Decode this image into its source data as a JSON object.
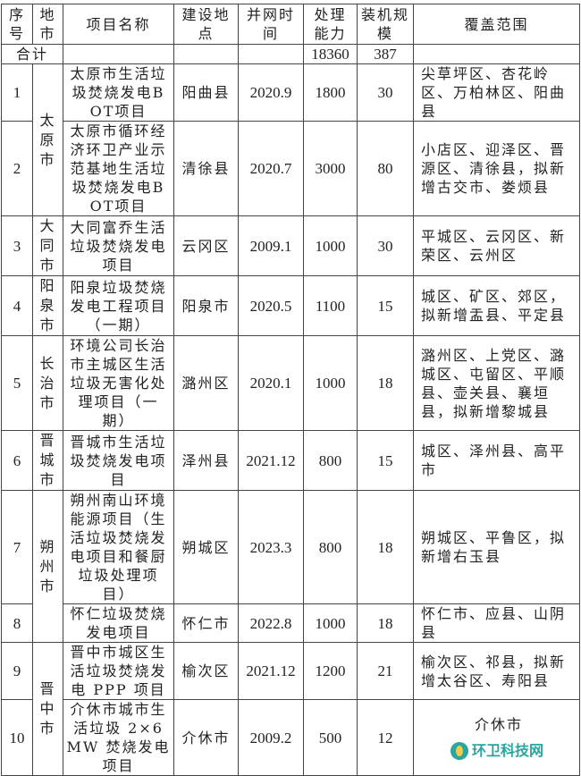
{
  "headers": [
    "序号",
    "地市",
    "项目名称",
    "建设地点",
    "并网时间",
    "处理能力",
    "装机规模",
    "覆盖范围"
  ],
  "total": {
    "label": "合计",
    "capacity": "18360",
    "installed": "387"
  },
  "cities": [
    "太原市",
    "大同市",
    "阳泉市",
    "长治市",
    "晋城市",
    "朔州市",
    "晋中市"
  ],
  "rows": [
    {
      "no": "1",
      "name": "太原市生活垃圾焚烧发电BOT项目",
      "site": "阳曲县",
      "date": "2020.9",
      "capacity": "1800",
      "installed": "30",
      "coverage": "尖草坪区、杏花岭区、万柏林区、阳曲县"
    },
    {
      "no": "2",
      "name": "太原市循环经济环卫产业示范基地生活垃圾焚烧发电BOT项目",
      "site": "清徐县",
      "date": "2020.7",
      "capacity": "3000",
      "installed": "80",
      "coverage": "小店区、迎泽区、晋源区、清徐县，拟新增古交市、娄烦县"
    },
    {
      "no": "3",
      "name": "大同富乔生活垃圾焚烧发电项目",
      "site": "云冈区",
      "date": "2009.1",
      "capacity": "1000",
      "installed": "30",
      "coverage": "平城区、云冈区、新荣区、云州区"
    },
    {
      "no": "4",
      "name": "阳泉垃圾焚烧发电工程项目（一期）",
      "site": "阳泉市",
      "date": "2020.5",
      "capacity": "1100",
      "installed": "15",
      "coverage": "城区、矿区、郊区，拟新增盂县、平定县"
    },
    {
      "no": "5",
      "name": "环境公司长治市主城区生活垃圾无害化处理项目（一期）",
      "site": "潞州区",
      "date": "2020.1",
      "capacity": "1000",
      "installed": "18",
      "coverage": "潞州区、上党区、潞城区、屯留区、平顺县、壶关县、襄垣县，拟新增黎城县"
    },
    {
      "no": "6",
      "name": "晋城市生活垃圾焚烧发电项目",
      "site": "泽州县",
      "date": "2021.12",
      "capacity": "800",
      "installed": "15",
      "coverage": "城区、泽州县、高平市"
    },
    {
      "no": "7",
      "name": "朔州南山环境能源项目（生活垃圾焚烧发电项目和餐厨垃圾处理项目）",
      "site": "朔城区",
      "date": "2023.3",
      "capacity": "800",
      "installed": "18",
      "coverage": "朔城区、平鲁区，拟新增右玉县"
    },
    {
      "no": "8",
      "name": "怀仁垃圾焚烧发电项目",
      "site": "怀仁市",
      "date": "2022.8",
      "capacity": "1000",
      "installed": "18",
      "coverage": "怀仁市、应县、山阴县"
    },
    {
      "no": "9",
      "name": "晋中市城区生活垃圾焚烧发电 PPP 项目",
      "site": "榆次区",
      "date": "2021.12",
      "capacity": "1200",
      "installed": "21",
      "coverage": "榆次区、祁县，拟新增太谷区、寿阳县"
    },
    {
      "no": "10",
      "name": "介休市城市生活垃圾 2×6MW 焚烧发电项目",
      "site": "介休市",
      "date": "2009.2",
      "capacity": "500",
      "installed": "12",
      "coverage": "介休市"
    }
  ],
  "watermark": {
    "text": "环卫科技网",
    "color": "#2aa6a0"
  }
}
